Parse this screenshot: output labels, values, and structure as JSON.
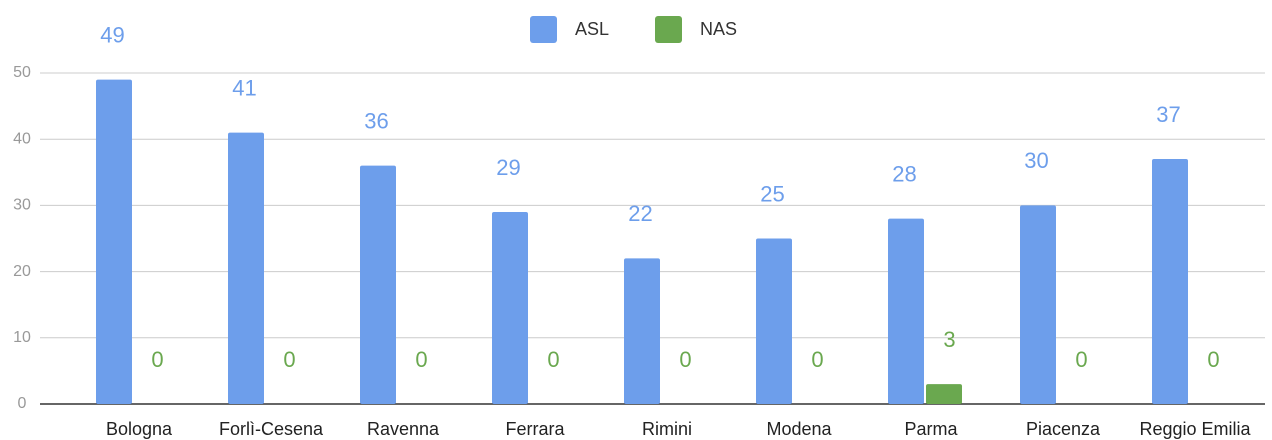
{
  "chart_data": {
    "type": "bar",
    "categories": [
      "Bologna",
      "Forlì-Cesena",
      "Ravenna",
      "Ferrara",
      "Rimini",
      "Modena",
      "Parma",
      "Piacenza",
      "Reggio Emilia"
    ],
    "series": [
      {
        "name": "ASL",
        "color": "#6d9eeb",
        "values": [
          49,
          41,
          36,
          29,
          22,
          25,
          28,
          30,
          37
        ]
      },
      {
        "name": "NAS",
        "color": "#6aa84f",
        "values": [
          0,
          0,
          0,
          0,
          0,
          0,
          3,
          0,
          0
        ]
      }
    ],
    "ylim": [
      0,
      50
    ],
    "yticks": [
      0,
      10,
      20,
      30,
      40,
      50
    ],
    "grid": true,
    "legend": "top"
  }
}
